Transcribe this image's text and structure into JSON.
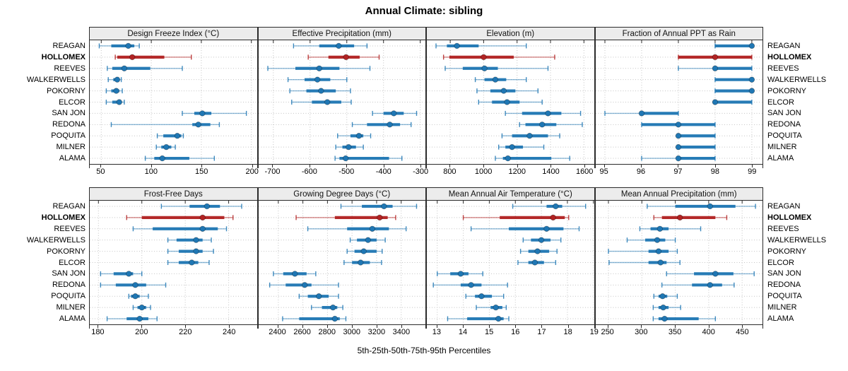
{
  "title": "Annual Climate: sibling",
  "caption": "5th-25th-50th-75th-95th Percentiles",
  "colors": {
    "series": "#1f77b4",
    "highlight": "#b22222",
    "strip_bg": "#ececec",
    "grid": "#c4c4c4",
    "border": "#2b2b2b"
  },
  "chart_data": {
    "type": "scatter",
    "variant": "trellis dotplot of five-number summaries (2 rows x 4 panels)",
    "percentiles": [
      "5th",
      "25th",
      "50th",
      "75th",
      "95th"
    ],
    "grid": true,
    "legend_position": "none",
    "categories": [
      "REAGAN",
      "HOLLOMEX",
      "REEVES",
      "WALKERWELLS",
      "POKORNY",
      "ELCOR",
      "SAN JON",
      "REDONA",
      "POQUITA",
      "MILNER",
      "ALAMA"
    ],
    "highlighted_category": "HOLLOMEX",
    "panels": [
      {
        "title": "Design Freeze Index (°C)",
        "ticks": [
          50,
          100,
          150,
          200
        ],
        "xlim": [
          38.5,
          205.5
        ],
        "rows": [
          [
            48,
            60,
            77,
            83,
            88
          ],
          [
            64,
            66,
            81,
            113,
            140
          ],
          [
            56,
            61,
            73,
            99,
            131
          ],
          [
            57,
            62,
            66,
            68,
            70
          ],
          [
            55,
            60,
            65,
            68,
            71
          ],
          [
            55,
            61,
            68,
            70,
            73
          ],
          [
            131,
            143,
            151,
            160,
            195
          ],
          [
            60,
            141,
            147,
            159,
            168
          ],
          [
            106,
            112,
            126,
            130,
            132
          ],
          [
            105,
            110,
            115,
            120,
            124
          ],
          [
            94,
            103,
            111,
            138,
            163
          ]
        ]
      },
      {
        "title": "Effective Precipitation (mm)",
        "ticks": [
          -700,
          -600,
          -500,
          -400,
          -300
        ],
        "xlim": [
          -740,
          -285
        ],
        "rows": [
          [
            -645,
            -575,
            -522,
            -480,
            -445
          ],
          [
            -605,
            -550,
            -502,
            -465,
            -412
          ],
          [
            -715,
            -640,
            -575,
            -520,
            -437
          ],
          [
            -660,
            -615,
            -580,
            -545,
            -500
          ],
          [
            -655,
            -610,
            -570,
            -530,
            -490
          ],
          [
            -650,
            -595,
            -553,
            -515,
            -488
          ],
          [
            -430,
            -400,
            -372,
            -345,
            -310
          ],
          [
            -485,
            -445,
            -383,
            -355,
            -325
          ],
          [
            -525,
            -490,
            -467,
            -455,
            -435
          ],
          [
            -530,
            -512,
            -495,
            -475,
            -455
          ],
          [
            -532,
            -520,
            -503,
            -385,
            -350
          ]
        ]
      },
      {
        "title": "Elevation (m)",
        "ticks": [
          800,
          1000,
          1200,
          1400,
          1600
        ],
        "xlim": [
          660,
          1660
        ],
        "rows": [
          [
            715,
            780,
            840,
            970,
            1255
          ],
          [
            760,
            795,
            1000,
            1180,
            1425
          ],
          [
            770,
            875,
            1005,
            1085,
            1385
          ],
          [
            950,
            1005,
            1070,
            1135,
            1255
          ],
          [
            960,
            1040,
            1120,
            1190,
            1325
          ],
          [
            970,
            1050,
            1140,
            1215,
            1350
          ],
          [
            1130,
            1230,
            1385,
            1465,
            1580
          ],
          [
            1215,
            1250,
            1350,
            1435,
            1590
          ],
          [
            1110,
            1170,
            1275,
            1385,
            1455
          ],
          [
            1090,
            1130,
            1170,
            1235,
            1360
          ],
          [
            1070,
            1115,
            1145,
            1405,
            1515
          ]
        ]
      },
      {
        "title": "Fraction of Annual PPT as Rain",
        "ticks": [
          95,
          96,
          97,
          98,
          99
        ],
        "xlim": [
          94.75,
          99.3
        ],
        "rows": [
          [
            98,
            98,
            99,
            99,
            99
          ],
          [
            97,
            97,
            98,
            99,
            99
          ],
          [
            97,
            98,
            98,
            99,
            99
          ],
          [
            98,
            98,
            99,
            99,
            99
          ],
          [
            98,
            98,
            99,
            99,
            99
          ],
          [
            98,
            98,
            98,
            99,
            99
          ],
          [
            95,
            96,
            96,
            97,
            97
          ],
          [
            96,
            96,
            97,
            98,
            98
          ],
          [
            97,
            97,
            97,
            98,
            98
          ],
          [
            97,
            97,
            97,
            98,
            98
          ],
          [
            96,
            97,
            97,
            98,
            98
          ]
        ]
      },
      {
        "title": "Frost-Free Days",
        "ticks": [
          180,
          200,
          220,
          240
        ],
        "xlim": [
          176,
          253
        ],
        "rows": [
          [
            209,
            222,
            230,
            236,
            246
          ],
          [
            193,
            200,
            228,
            238,
            242
          ],
          [
            196,
            205,
            228,
            235,
            239
          ],
          [
            212,
            216,
            225,
            228,
            232
          ],
          [
            212,
            217,
            225,
            228,
            233
          ],
          [
            212,
            217,
            223,
            226,
            231
          ],
          [
            181,
            187,
            194,
            196,
            200
          ],
          [
            181,
            188,
            197,
            202,
            211
          ],
          [
            194,
            195,
            197,
            199,
            203
          ],
          [
            196,
            198,
            200,
            202,
            204
          ],
          [
            184,
            193,
            199,
            203,
            207
          ]
        ]
      },
      {
        "title": "Growing Degree Days (°C)",
        "ticks": [
          2400,
          2600,
          2800,
          3000,
          3200,
          3400
        ],
        "xlim": [
          2240,
          3600
        ],
        "rows": [
          [
            2910,
            3080,
            3260,
            3330,
            3525
          ],
          [
            2545,
            2860,
            3225,
            3290,
            3355
          ],
          [
            2640,
            2960,
            3165,
            3300,
            3440
          ],
          [
            2985,
            3040,
            3130,
            3200,
            3270
          ],
          [
            2960,
            3020,
            3095,
            3200,
            3245
          ],
          [
            2935,
            3000,
            3070,
            3145,
            3240
          ],
          [
            2360,
            2440,
            2535,
            2630,
            2705
          ],
          [
            2330,
            2460,
            2615,
            2670,
            2890
          ],
          [
            2570,
            2640,
            2730,
            2810,
            2890
          ],
          [
            2670,
            2755,
            2845,
            2880,
            2925
          ],
          [
            2435,
            2570,
            2860,
            2900,
            2950
          ]
        ]
      },
      {
        "title": "Mean Annual Air Temperature (°C)",
        "ticks": [
          13,
          14,
          15,
          16,
          17,
          18,
          19
        ],
        "xlim": [
          12.6,
          19.02
        ],
        "rows": [
          [
            15.9,
            17.2,
            17.55,
            17.8,
            18.7
          ],
          [
            14.0,
            15.4,
            17.45,
            17.9,
            18.05
          ],
          [
            14.3,
            15.75,
            17.2,
            17.85,
            18.45
          ],
          [
            16.3,
            16.6,
            17.0,
            17.35,
            17.75
          ],
          [
            16.2,
            16.5,
            16.85,
            17.3,
            17.6
          ],
          [
            16.1,
            16.5,
            16.75,
            17.1,
            17.55
          ],
          [
            13.0,
            13.5,
            13.9,
            14.2,
            14.75
          ],
          [
            12.85,
            13.9,
            14.3,
            14.7,
            15.7
          ],
          [
            14.1,
            14.45,
            14.7,
            15.1,
            15.55
          ],
          [
            14.5,
            15.05,
            15.25,
            15.5,
            15.65
          ],
          [
            13.4,
            14.15,
            15.35,
            15.55,
            15.75
          ]
        ]
      },
      {
        "title": "Mean Annual Precipitation (mm)",
        "ticks": [
          250,
          300,
          350,
          400,
          450
        ],
        "xlim": [
          231,
          481
        ],
        "rows": [
          [
            308,
            350,
            402,
            440,
            470
          ],
          [
            318,
            330,
            357,
            410,
            427
          ],
          [
            297,
            313,
            327,
            340,
            388
          ],
          [
            278,
            305,
            323,
            335,
            350
          ],
          [
            250,
            310,
            325,
            340,
            353
          ],
          [
            251,
            310,
            328,
            337,
            357
          ],
          [
            337,
            378,
            410,
            437,
            468
          ],
          [
            330,
            375,
            402,
            420,
            438
          ],
          [
            318,
            325,
            331,
            338,
            353
          ],
          [
            317,
            325,
            332,
            340,
            358
          ],
          [
            317,
            325,
            334,
            385,
            410
          ]
        ]
      }
    ]
  }
}
